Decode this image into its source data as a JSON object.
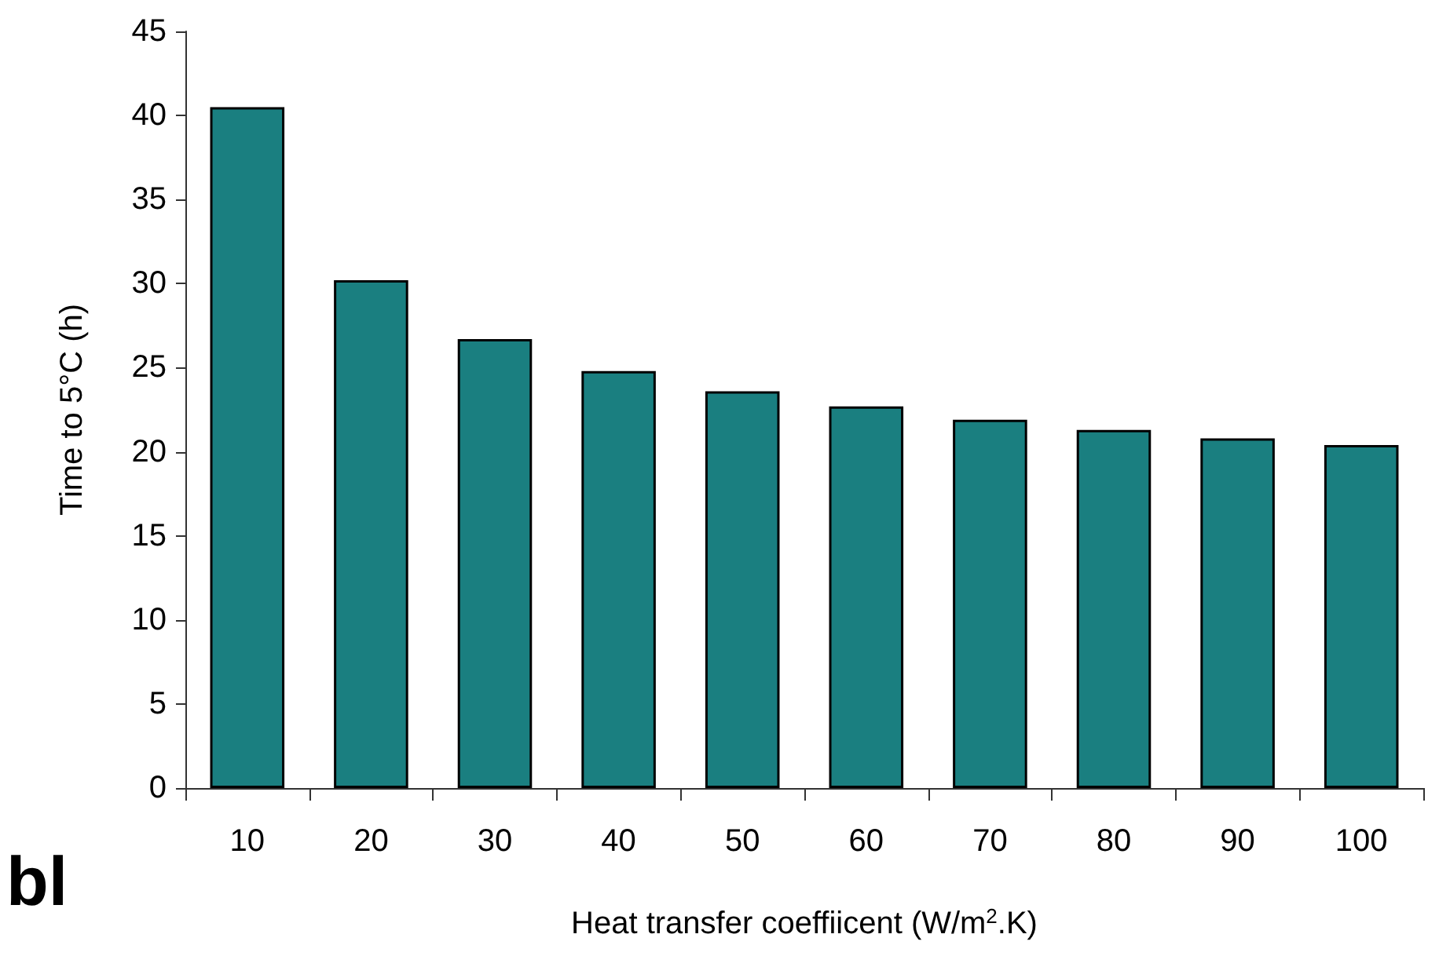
{
  "chart_data": {
    "type": "bar",
    "xlabel": "Heat transfer coeffiicent (W/m$^{2}$.K)",
    "ylabel": "Time to 5°C (h)",
    "categories": [
      "10",
      "20",
      "30",
      "40",
      "50",
      "60",
      "70",
      "80",
      "90",
      "100"
    ],
    "values": [
      40.5,
      30.2,
      26.7,
      24.8,
      23.6,
      22.7,
      21.9,
      21.3,
      20.8,
      20.4
    ],
    "color": "#1a7f80",
    "ylim": [
      0,
      45
    ],
    "yticks": [
      0,
      5,
      10,
      15,
      20,
      25,
      30,
      35,
      40,
      45
    ],
    "grid": false,
    "annotations": [
      "bl"
    ]
  }
}
